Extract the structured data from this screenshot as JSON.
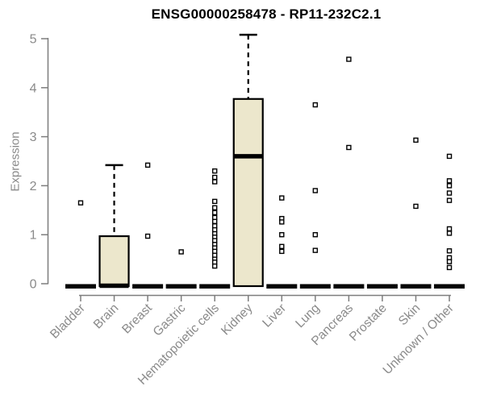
{
  "chart_data": {
    "type": "boxplot",
    "title": "ENSG00000258478 - RP11-232C2.1",
    "ylabel": "Expression",
    "ylim": [
      0,
      5
    ],
    "yticks": [
      0,
      1,
      2,
      3,
      4,
      5
    ],
    "grid": false,
    "legend": "none",
    "box_fill_color": "#ECE7CC",
    "box_stroke_color": "#000000",
    "axis_color": "#7d7d7d",
    "label_color": "#8a8a8a",
    "categories": [
      "Bladder",
      "Brain",
      "Breast",
      "Gastric",
      "Hematopoietic cells",
      "Kidney",
      "Liver",
      "Lung",
      "Pancreas",
      "Prostate",
      "Skin",
      "Unknown / Other"
    ],
    "series": [
      {
        "name": "Bladder",
        "q1": 0,
        "median": 0,
        "q3": 0,
        "whisker_low": 0,
        "whisker_high": 0,
        "outliers": [
          1.65
        ]
      },
      {
        "name": "Brain",
        "q1": 0,
        "median": 0,
        "q3": 0.97,
        "whisker_low": 0,
        "whisker_high": 2.42,
        "outliers": []
      },
      {
        "name": "Breast",
        "q1": 0,
        "median": 0,
        "q3": 0,
        "whisker_low": 0,
        "whisker_high": 0,
        "outliers": [
          2.42,
          0.97
        ]
      },
      {
        "name": "Gastric",
        "q1": 0,
        "median": 0,
        "q3": 0,
        "whisker_low": 0,
        "whisker_high": 0,
        "outliers": [
          0.65
        ]
      },
      {
        "name": "Hematopoietic cells",
        "q1": 0,
        "median": 0,
        "q3": 0,
        "whisker_low": 0,
        "whisker_high": 0,
        "outliers": [
          2.3,
          2.17,
          2.08,
          1.68,
          1.55,
          1.45,
          1.35,
          1.27,
          1.18,
          1.1,
          1.02,
          0.95,
          0.88,
          0.8,
          0.73,
          0.66,
          0.58,
          0.5,
          0.44,
          0.36
        ]
      },
      {
        "name": "Kidney",
        "q1": 0,
        "median": 2.6,
        "q3": 3.77,
        "whisker_low": 0,
        "whisker_high": 5.08,
        "outliers": []
      },
      {
        "name": "Liver",
        "q1": 0,
        "median": 0,
        "q3": 0,
        "whisker_low": 0,
        "whisker_high": 0,
        "outliers": [
          1.75,
          1.33,
          1.26,
          1.0,
          0.76,
          0.66
        ]
      },
      {
        "name": "Lung",
        "q1": 0,
        "median": 0,
        "q3": 0,
        "whisker_low": 0,
        "whisker_high": 0,
        "outliers": [
          3.65,
          1.9,
          1.0,
          0.68
        ]
      },
      {
        "name": "Pancreas",
        "q1": 0,
        "median": 0,
        "q3": 0,
        "whisker_low": 0,
        "whisker_high": 0,
        "outliers": [
          4.58,
          2.78
        ]
      },
      {
        "name": "Prostate",
        "q1": 0,
        "median": 0,
        "q3": 0,
        "whisker_low": 0,
        "whisker_high": 0,
        "outliers": []
      },
      {
        "name": "Skin",
        "q1": 0,
        "median": 0,
        "q3": 0,
        "whisker_low": 0,
        "whisker_high": 0,
        "outliers": [
          2.93,
          1.58
        ]
      },
      {
        "name": "Unknown / Other",
        "q1": 0,
        "median": 0,
        "q3": 0,
        "whisker_low": 0,
        "whisker_high": 0,
        "outliers": [
          2.6,
          2.1,
          2.0,
          1.85,
          1.7,
          1.12,
          1.03,
          0.67,
          0.53,
          0.45,
          0.33
        ]
      }
    ]
  }
}
